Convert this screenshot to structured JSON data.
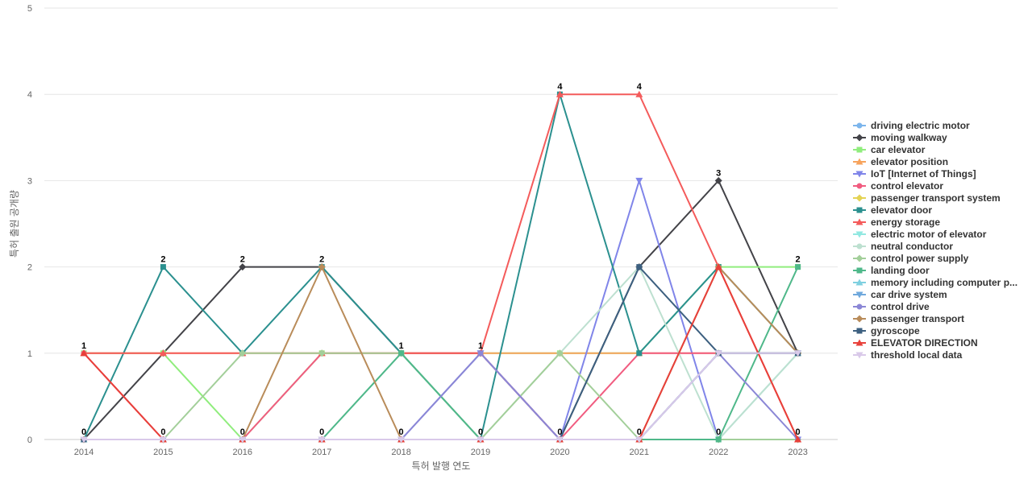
{
  "chart_data": {
    "type": "line",
    "xlabel": "특허 발행 연도",
    "ylabel": "특허 출원 공개량",
    "ylim": [
      0,
      5
    ],
    "yticks": [
      0,
      1,
      2,
      3,
      4,
      5
    ],
    "categories": [
      "2014",
      "2015",
      "2016",
      "2017",
      "2018",
      "2019",
      "2020",
      "2021",
      "2022",
      "2023"
    ],
    "grid": "horizontal",
    "legend_position": "right",
    "series": [
      {
        "name": "driving electric motor",
        "color": "#7cb5ec",
        "marker": "circle",
        "values": [
          0,
          0,
          0,
          0,
          0,
          0,
          0,
          0,
          1,
          1
        ]
      },
      {
        "name": "moving walkway",
        "color": "#434348",
        "marker": "diamond",
        "values": [
          0,
          1,
          2,
          2,
          1,
          1,
          0,
          2,
          3,
          1
        ]
      },
      {
        "name": "car elevator",
        "color": "#90ed7d",
        "marker": "square",
        "values": [
          1,
          1,
          0,
          1,
          1,
          1,
          1,
          1,
          2,
          2
        ]
      },
      {
        "name": "elevator position",
        "color": "#f7a35c",
        "marker": "triangle",
        "values": [
          1,
          1,
          1,
          1,
          1,
          1,
          1,
          1,
          1,
          1
        ]
      },
      {
        "name": "IoT [Internet of Things]",
        "color": "#8085e9",
        "marker": "triangle-down",
        "values": [
          0,
          0,
          0,
          0,
          0,
          1,
          0,
          3,
          0,
          0
        ]
      },
      {
        "name": "control elevator",
        "color": "#f15c80",
        "marker": "circle",
        "values": [
          1,
          0,
          0,
          1,
          1,
          1,
          0,
          1,
          1,
          1
        ]
      },
      {
        "name": "passenger transport system",
        "color": "#e4d354",
        "marker": "diamond",
        "values": [
          0,
          0,
          0,
          0,
          0,
          0,
          0,
          0,
          1,
          1
        ]
      },
      {
        "name": "elevator door",
        "color": "#2b908f",
        "marker": "square",
        "values": [
          0,
          2,
          1,
          2,
          1,
          0,
          4,
          1,
          2,
          1
        ]
      },
      {
        "name": "energy storage",
        "color": "#f45b5b",
        "marker": "triangle",
        "values": [
          1,
          1,
          1,
          1,
          1,
          1,
          4,
          4,
          2,
          0
        ]
      },
      {
        "name": "electric motor of elevator",
        "color": "#91e8e1",
        "marker": "triangle-down",
        "values": [
          0,
          0,
          0,
          0,
          0,
          0,
          0,
          0,
          0,
          1
        ]
      },
      {
        "name": "neutral conductor",
        "color": "#bde0d0",
        "marker": "circle",
        "values": [
          0,
          0,
          0,
          0,
          1,
          0,
          1,
          2,
          0,
          1
        ]
      },
      {
        "name": "control power supply",
        "color": "#a3cf9a",
        "marker": "diamond",
        "values": [
          0,
          0,
          1,
          1,
          1,
          0,
          1,
          0,
          0,
          0
        ]
      },
      {
        "name": "landing door",
        "color": "#4fb88a",
        "marker": "square",
        "values": [
          0,
          0,
          0,
          0,
          1,
          0,
          0,
          0,
          0,
          2
        ]
      },
      {
        "name": "memory including computer p...",
        "color": "#7fd0e0",
        "marker": "triangle",
        "values": [
          0,
          0,
          0,
          0,
          0,
          0,
          0,
          0,
          1,
          1
        ]
      },
      {
        "name": "car drive system",
        "color": "#6fa8dc",
        "marker": "triangle-down",
        "values": [
          0,
          0,
          0,
          0,
          0,
          0,
          0,
          0,
          1,
          1
        ]
      },
      {
        "name": "control drive",
        "color": "#8b87d6",
        "marker": "circle",
        "values": [
          0,
          0,
          0,
          0,
          0,
          1,
          0,
          0,
          1,
          0
        ]
      },
      {
        "name": "passenger transport",
        "color": "#b98c5a",
        "marker": "diamond",
        "values": [
          0,
          0,
          0,
          2,
          0,
          0,
          0,
          0,
          2,
          1
        ]
      },
      {
        "name": "gyroscope",
        "color": "#3d6080",
        "marker": "square",
        "values": [
          0,
          0,
          0,
          0,
          0,
          0,
          0,
          2,
          1,
          1
        ]
      },
      {
        "name": "ELEVATOR DIRECTION",
        "color": "#e8403a",
        "marker": "triangle",
        "values": [
          1,
          0,
          0,
          0,
          0,
          0,
          0,
          0,
          2,
          0
        ]
      },
      {
        "name": "threshold local data",
        "color": "#d9c9e9",
        "marker": "triangle-down",
        "values": [
          0,
          0,
          0,
          0,
          0,
          0,
          0,
          0,
          1,
          1
        ]
      }
    ],
    "data_labels": {
      "values": [
        1,
        2,
        2,
        2,
        1,
        1,
        4,
        4,
        3,
        2
      ]
    }
  }
}
